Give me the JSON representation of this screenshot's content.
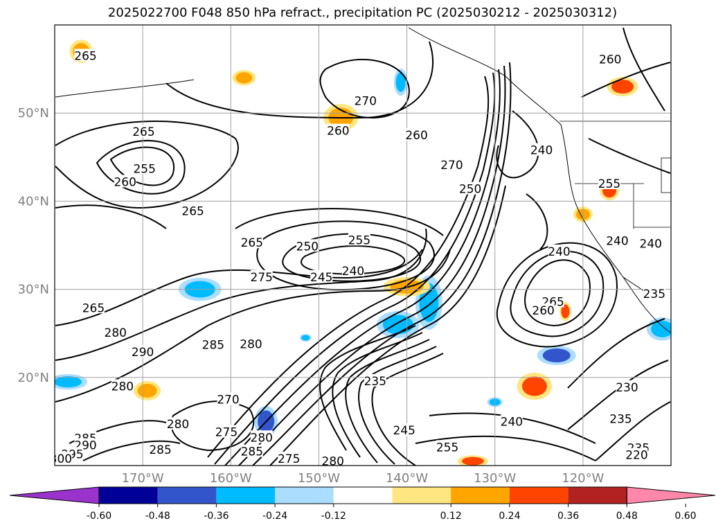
{
  "title": "2025022700 F048 850 hPa refract., precipitation PC (2025030212 - 2025030312)",
  "map": {
    "lon_range": [
      -180,
      -110
    ],
    "lat_range": [
      10,
      60
    ],
    "lat_ticks": [
      {
        "value": 50,
        "label": "50°N"
      },
      {
        "value": 40,
        "label": "40°N"
      },
      {
        "value": 30,
        "label": "30°N"
      },
      {
        "value": 20,
        "label": "20°N"
      }
    ],
    "lon_ticks": [
      {
        "value": -170,
        "label": "170°W"
      },
      {
        "value": -160,
        "label": "160°W"
      },
      {
        "value": -150,
        "label": "150°W"
      },
      {
        "value": -140,
        "label": "140°W"
      },
      {
        "value": -130,
        "label": "130°W"
      },
      {
        "value": -120,
        "label": "120°W"
      }
    ],
    "grid_lons": [
      -170,
      -160,
      -150,
      -140,
      -130,
      -120,
      -110
    ],
    "grid_lats": [
      50,
      40,
      30,
      20,
      10
    ],
    "grid": true,
    "contour_color": "#000000",
    "grid_color": "#a0a0a0"
  },
  "contour_labels": [
    {
      "text": "265",
      "lon": -176.5,
      "lat": 56.5
    },
    {
      "text": "270",
      "lon": -144.7,
      "lat": 51.4
    },
    {
      "text": "260",
      "lon": -116.9,
      "lat": 56.1
    },
    {
      "text": "260",
      "lon": -147.8,
      "lat": 48.0
    },
    {
      "text": "265",
      "lon": -169.9,
      "lat": 47.9
    },
    {
      "text": "260",
      "lon": -138.9,
      "lat": 47.5
    },
    {
      "text": "255",
      "lon": -169.8,
      "lat": 43.7
    },
    {
      "text": "260",
      "lon": -172.0,
      "lat": 42.2
    },
    {
      "text": "240",
      "lon": -124.7,
      "lat": 45.8
    },
    {
      "text": "270",
      "lon": -134.9,
      "lat": 44.1
    },
    {
      "text": "250",
      "lon": -132.8,
      "lat": 41.4
    },
    {
      "text": "255",
      "lon": -117.0,
      "lat": 42.0
    },
    {
      "text": "265",
      "lon": -164.3,
      "lat": 38.9
    },
    {
      "text": "265",
      "lon": -157.6,
      "lat": 35.3
    },
    {
      "text": "255",
      "lon": -145.4,
      "lat": 35.6
    },
    {
      "text": "250",
      "lon": -151.3,
      "lat": 34.9
    },
    {
      "text": "240",
      "lon": -122.7,
      "lat": 34.3
    },
    {
      "text": "240",
      "lon": -116.1,
      "lat": 35.5
    },
    {
      "text": "240",
      "lon": -112.3,
      "lat": 35.2
    },
    {
      "text": "275",
      "lon": -156.5,
      "lat": 31.4
    },
    {
      "text": "245",
      "lon": -149.7,
      "lat": 31.4
    },
    {
      "text": "240",
      "lon": -146.1,
      "lat": 32.1
    },
    {
      "text": "235",
      "lon": -111.9,
      "lat": 29.5
    },
    {
      "text": "265",
      "lon": -175.6,
      "lat": 27.9
    },
    {
      "text": "265",
      "lon": -123.4,
      "lat": 28.6
    },
    {
      "text": "260",
      "lon": -124.5,
      "lat": 27.6
    },
    {
      "text": "280",
      "lon": -173.1,
      "lat": 25.1
    },
    {
      "text": "290",
      "lon": -170.0,
      "lat": 22.9
    },
    {
      "text": "285",
      "lon": -162.0,
      "lat": 23.7
    },
    {
      "text": "280",
      "lon": -157.7,
      "lat": 23.8
    },
    {
      "text": "235",
      "lon": -143.6,
      "lat": 19.6
    },
    {
      "text": "230",
      "lon": -115.0,
      "lat": 18.9
    },
    {
      "text": "280",
      "lon": -172.3,
      "lat": 19.0
    },
    {
      "text": "270",
      "lon": -160.3,
      "lat": 17.5
    },
    {
      "text": "235",
      "lon": -115.7,
      "lat": 15.3
    },
    {
      "text": "280",
      "lon": -166.0,
      "lat": 14.7
    },
    {
      "text": "275",
      "lon": -160.5,
      "lat": 13.8
    },
    {
      "text": "280",
      "lon": -156.5,
      "lat": 13.2
    },
    {
      "text": "240",
      "lon": -128.1,
      "lat": 15.0
    },
    {
      "text": "245",
      "lon": -140.3,
      "lat": 14.0
    },
    {
      "text": "285",
      "lon": -176.5,
      "lat": 13.1
    },
    {
      "text": "290",
      "lon": -176.5,
      "lat": 12.3
    },
    {
      "text": "285",
      "lon": -168.0,
      "lat": 11.8
    },
    {
      "text": "295",
      "lon": -178.0,
      "lat": 11.3
    },
    {
      "text": "300",
      "lon": -179.3,
      "lat": 10.8
    },
    {
      "text": "285",
      "lon": -157.6,
      "lat": 11.6
    },
    {
      "text": "275",
      "lon": -153.4,
      "lat": 10.8
    },
    {
      "text": "280",
      "lon": -148.4,
      "lat": 10.5
    },
    {
      "text": "255",
      "lon": -135.4,
      "lat": 12.1
    },
    {
      "text": "235",
      "lon": -113.7,
      "lat": 12.0
    },
    {
      "text": "220",
      "lon": -113.9,
      "lat": 11.2
    }
  ],
  "colorbar": {
    "ticks": [
      "-0.60",
      "-0.48",
      "-0.36",
      "-0.24",
      "-0.12",
      "0.12",
      "0.24",
      "0.36",
      "0.48",
      "0.60"
    ],
    "under_color": "#9933cc",
    "over_color": "#ff88aa",
    "colors": [
      "#9933cc",
      "#000099",
      "#3355cc",
      "#00bbff",
      "#aaddff",
      "#ffffff",
      "#ffe680",
      "#ffa500",
      "#ff4400",
      "#b22222",
      "#ff88aa"
    ]
  },
  "precip_blobs": [
    {
      "lon": -163.5,
      "lat": 30.0,
      "rx": 22,
      "ry": 12,
      "color": "#00bbff"
    },
    {
      "lon": -141.0,
      "lat": 26.0,
      "rx": 22,
      "ry": 14,
      "color": "#00bbff"
    },
    {
      "lon": -137.5,
      "lat": 28.5,
      "rx": 14,
      "ry": 28,
      "color": "#00bbff"
    },
    {
      "lon": -123.0,
      "lat": 22.5,
      "rx": 20,
      "ry": 10,
      "color": "#3355cc"
    },
    {
      "lon": -156.0,
      "lat": 15.0,
      "rx": 12,
      "ry": 16,
      "color": "#3355cc"
    },
    {
      "lon": -178.5,
      "lat": 19.5,
      "rx": 20,
      "ry": 8,
      "color": "#00bbff"
    },
    {
      "lon": -111.0,
      "lat": 25.5,
      "rx": 16,
      "ry": 12,
      "color": "#00bbff"
    },
    {
      "lon": -140.7,
      "lat": 53.5,
      "rx": 7,
      "ry": 14,
      "color": "#00bbff"
    },
    {
      "lon": -140.0,
      "lat": 30.3,
      "rx": 24,
      "ry": 10,
      "color": "#ffa500"
    },
    {
      "lon": -125.5,
      "lat": 19.0,
      "rx": 18,
      "ry": 14,
      "color": "#ff4400"
    },
    {
      "lon": -115.5,
      "lat": 53.0,
      "rx": 16,
      "ry": 10,
      "color": "#ff4400"
    },
    {
      "lon": -147.5,
      "lat": 49.5,
      "rx": 18,
      "ry": 14,
      "color": "#ffa500"
    },
    {
      "lon": -117.0,
      "lat": 41.2,
      "rx": 10,
      "ry": 10,
      "color": "#ff4400"
    },
    {
      "lon": -120.0,
      "lat": 38.5,
      "rx": 10,
      "ry": 8,
      "color": "#ffa500"
    },
    {
      "lon": -122.0,
      "lat": 27.5,
      "rx": 6,
      "ry": 10,
      "color": "#ff4400"
    },
    {
      "lon": -169.5,
      "lat": 18.5,
      "rx": 14,
      "ry": 10,
      "color": "#ffa500"
    },
    {
      "lon": -132.5,
      "lat": 10.5,
      "rx": 16,
      "ry": 6,
      "color": "#ff4400"
    },
    {
      "lon": -177.0,
      "lat": 57.0,
      "rx": 12,
      "ry": 12,
      "color": "#ffa500"
    },
    {
      "lon": -158.5,
      "lat": 54.0,
      "rx": 12,
      "ry": 8,
      "color": "#ffa500"
    },
    {
      "lon": -130.0,
      "lat": 17.2,
      "rx": 8,
      "ry": 5,
      "color": "#00bbff"
    },
    {
      "lon": -151.5,
      "lat": 24.5,
      "rx": 6,
      "ry": 4,
      "color": "#00bbff"
    }
  ]
}
